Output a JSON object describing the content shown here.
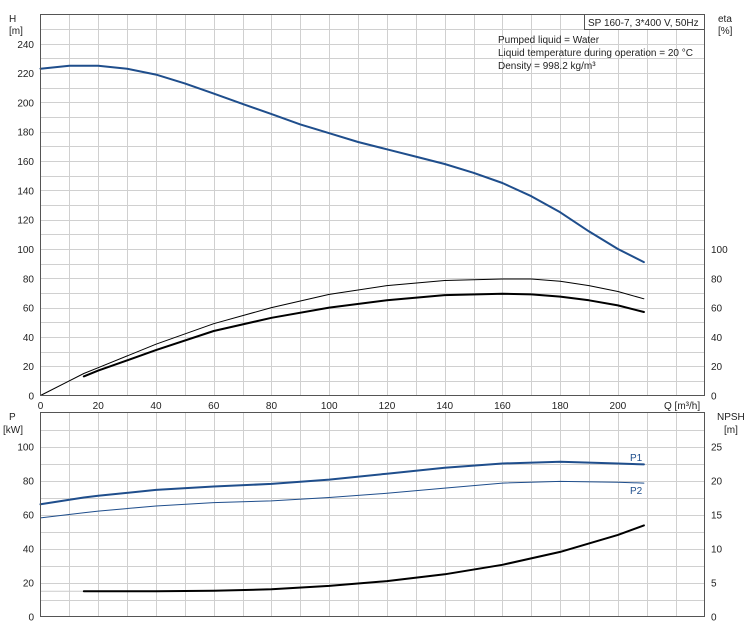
{
  "chart_data": [
    {
      "type": "line",
      "title": "SP 160-7, 3*400 V, 50Hz",
      "annotations": [
        "Pumped liquid = Water",
        "Liquid temperature during operation = 20 °C",
        "Density = 998.2 kg/m³"
      ],
      "xlabel": "Q [m³/h]",
      "xlim": [
        0,
        230
      ],
      "xticks": [
        0,
        20,
        40,
        60,
        80,
        100,
        120,
        140,
        160,
        180,
        200
      ],
      "y_left": {
        "label_line1": "H",
        "label_line2": "[m]",
        "lim": [
          0,
          260
        ],
        "ticks": [
          0,
          20,
          40,
          60,
          80,
          100,
          120,
          140,
          160,
          180,
          200,
          220,
          240
        ]
      },
      "y_right": {
        "label_line1": "eta",
        "label_line2": "[%]",
        "lim": [
          0,
          260
        ],
        "ticks": [
          0,
          20,
          40,
          60,
          80,
          100
        ]
      },
      "grid": true,
      "series": [
        {
          "axis": "left",
          "color": "#1f4e8c",
          "width": 2,
          "x": [
            0,
            10,
            20,
            30,
            40,
            50,
            60,
            70,
            80,
            90,
            100,
            110,
            120,
            130,
            140,
            150,
            160,
            170,
            180,
            190,
            200,
            209
          ],
          "y": [
            223,
            225,
            225,
            223,
            219,
            213,
            206,
            199,
            192,
            185,
            179,
            173,
            168,
            163,
            158,
            152,
            145,
            136,
            125,
            112,
            100,
            91
          ]
        },
        {
          "axis": "right",
          "color": "#000000",
          "width": 1,
          "x": [
            0,
            15,
            20,
            40,
            60,
            80,
            100,
            120,
            140,
            160,
            170,
            180,
            190,
            200,
            209
          ],
          "y": [
            0,
            15,
            19,
            35,
            49,
            60,
            69,
            75,
            78.5,
            79.5,
            79.5,
            78,
            75,
            71,
            66
          ]
        },
        {
          "axis": "right",
          "color": "#000000",
          "width": 2,
          "x": [
            15,
            20,
            40,
            60,
            80,
            100,
            120,
            140,
            160,
            170,
            180,
            190,
            200,
            209
          ],
          "y": [
            13,
            17,
            31,
            44,
            53,
            60,
            65,
            68.5,
            69.5,
            69,
            67.5,
            65,
            61.5,
            57
          ]
        }
      ]
    },
    {
      "type": "line",
      "xlim": [
        0,
        230
      ],
      "y_left": {
        "label_line1": "P",
        "label_line2": "[kW]",
        "lim": [
          0,
          120
        ],
        "ticks": [
          0,
          20,
          40,
          60,
          80,
          100
        ]
      },
      "y_right": {
        "label_line1": "NPSH",
        "label_line2": "[m]",
        "lim": [
          0,
          30
        ],
        "ticks": [
          0,
          5,
          10,
          15,
          20,
          25
        ]
      },
      "grid": true,
      "series": [
        {
          "name": "P1",
          "axis": "left",
          "color": "#1f4e8c",
          "width": 2,
          "x": [
            0,
            15,
            20,
            40,
            60,
            80,
            100,
            120,
            140,
            160,
            180,
            200,
            209
          ],
          "y": [
            66,
            70,
            71,
            74.5,
            76.5,
            78,
            80.5,
            84,
            87.5,
            90,
            91,
            90,
            89.5
          ]
        },
        {
          "name": "P2",
          "axis": "left",
          "color": "#1f4e8c",
          "width": 1,
          "x": [
            0,
            15,
            20,
            40,
            60,
            80,
            100,
            120,
            140,
            160,
            180,
            200,
            209
          ],
          "y": [
            58,
            61,
            62,
            65,
            67,
            68,
            70,
            72.5,
            75.5,
            78.5,
            79.5,
            79,
            78.5
          ]
        },
        {
          "axis": "right",
          "color": "#cccccc",
          "width": 1,
          "x": [
            0,
            15
          ],
          "y": [
            3.7,
            3.7
          ]
        },
        {
          "axis": "right",
          "color": "#000000",
          "width": 2,
          "x": [
            15,
            40,
            60,
            80,
            100,
            120,
            140,
            160,
            180,
            200,
            209
          ],
          "y": [
            3.7,
            3.7,
            3.8,
            4.0,
            4.5,
            5.2,
            6.2,
            7.6,
            9.5,
            12.0,
            13.4
          ]
        }
      ]
    }
  ]
}
